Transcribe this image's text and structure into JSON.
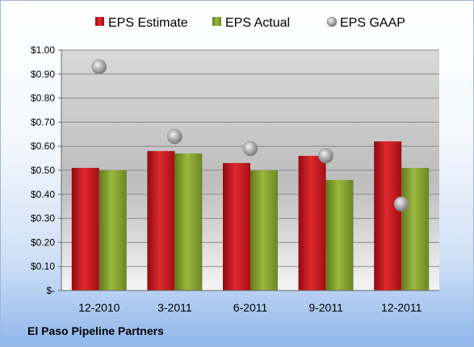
{
  "chart_data": {
    "type": "bar",
    "categories": [
      "12-2010",
      "3-2011",
      "6-2011",
      "9-2011",
      "12-2011"
    ],
    "series": [
      {
        "name": "EPS Estimate",
        "kind": "bar",
        "color": "#c8141c",
        "values": [
          0.51,
          0.58,
          0.53,
          0.56,
          0.62
        ]
      },
      {
        "name": "EPS Actual",
        "kind": "bar",
        "color": "#7e9b2c",
        "values": [
          0.5,
          0.57,
          0.5,
          0.46,
          0.51
        ]
      },
      {
        "name": "EPS GAAP",
        "kind": "scatter",
        "color": "#a8a8a8",
        "values": [
          0.93,
          0.64,
          0.59,
          0.56,
          0.36
        ]
      }
    ],
    "y_ticks": [
      "$-",
      "$0.10",
      "$0.20",
      "$0.30",
      "$0.40",
      "$0.50",
      "$0.60",
      "$0.70",
      "$0.80",
      "$0.90",
      "$1.00"
    ],
    "ylim": [
      0,
      1.0
    ],
    "grid": true,
    "legend_position": "top"
  },
  "footer": {
    "company": "El Paso Pipeline Partners"
  }
}
